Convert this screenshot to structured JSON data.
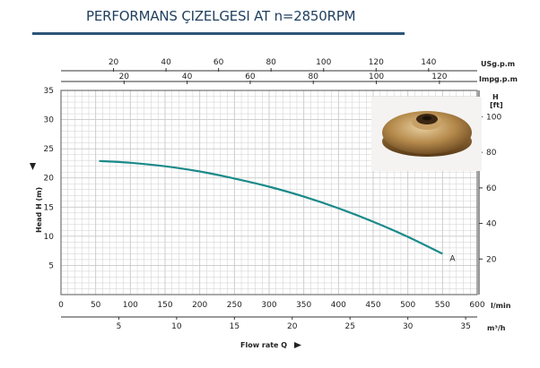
{
  "title": "PERFORMANS ÇIZELGESI  AT n=2850RPM",
  "colors": {
    "curve": "#1b8a8a",
    "grid": "#c8c8c8",
    "title": "#1f3f5e",
    "rule": "#2c557a"
  },
  "chart_data": {
    "type": "line",
    "title": "PERFORMANS ÇIZELGESI  AT n=2850RPM",
    "xlabel": "Flow rate Q",
    "ylabel": "Head H (m)",
    "series": [
      {
        "name": "A",
        "x_lmin": [
          55,
          100,
          150,
          200,
          250,
          300,
          350,
          400,
          450,
          500,
          550
        ],
        "y_m": [
          22.9,
          22.6,
          22.0,
          21.1,
          19.9,
          18.5,
          16.8,
          14.8,
          12.5,
          9.9,
          7.0
        ]
      }
    ],
    "x_axis_lmin": {
      "label": "l/min",
      "ticks": [
        "0",
        "50",
        "100",
        "150",
        "200",
        "250",
        "300",
        "350",
        "400",
        "450",
        "500",
        "550",
        "600"
      ],
      "range": [
        0,
        600
      ]
    },
    "x_axis_m3h": {
      "label": "m³/h",
      "ticks": [
        "5",
        "10",
        "15",
        "20",
        "25",
        "30",
        "35"
      ]
    },
    "x_axis_usgpm": {
      "label": "USg.p.m",
      "ticks": [
        "20",
        "40",
        "60",
        "80",
        "100",
        "120",
        "140"
      ]
    },
    "x_axis_impgpm": {
      "label": "Impg.p.m",
      "ticks": [
        "20",
        "40",
        "60",
        "80",
        "100",
        "120"
      ]
    },
    "y_axis_m": {
      "label": "Head H (m)",
      "ticks": [
        "5",
        "10",
        "15",
        "20",
        "25",
        "30",
        "35"
      ],
      "range": [
        0,
        35
      ]
    },
    "y_axis_ft": {
      "label": "H [ft]",
      "label_line1": "H",
      "label_line2": "[ft]",
      "ticks": [
        "20",
        "40",
        "60",
        "80",
        "100"
      ]
    },
    "grid": true
  }
}
